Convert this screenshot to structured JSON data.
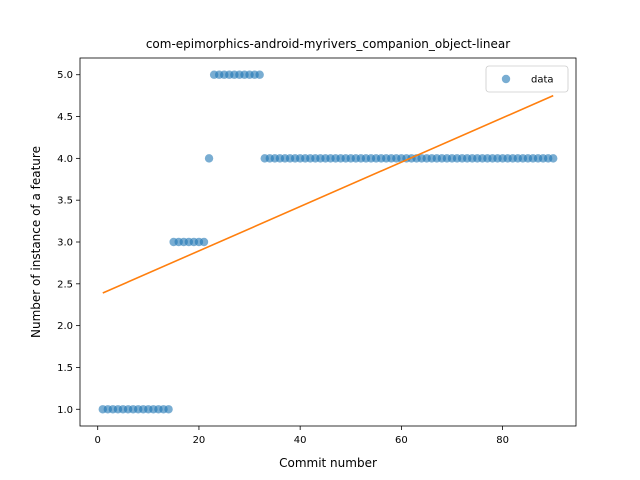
{
  "chart_data": {
    "type": "scatter",
    "title": "com-epimorphics-android-myrivers_companion_object-linear",
    "xlabel": "Commit number",
    "ylabel": "Number of instance of a feature",
    "xlim": [
      -3.5,
      94.5
    ],
    "ylim": [
      0.8,
      5.2
    ],
    "xticks": [
      0,
      20,
      40,
      60,
      80
    ],
    "xtick_labels": [
      "0",
      "20",
      "40",
      "60",
      "80"
    ],
    "yticks": [
      1.0,
      1.5,
      2.0,
      2.5,
      3.0,
      3.5,
      4.0,
      4.5,
      5.0
    ],
    "ytick_labels": [
      "1.0",
      "1.5",
      "2.0",
      "2.5",
      "3.0",
      "3.5",
      "4.0",
      "4.5",
      "5.0"
    ],
    "grid": false,
    "legend": {
      "position": "top-right",
      "entries": [
        "data"
      ]
    },
    "colors": {
      "data": "#1f77b4",
      "fit": "#ff7f0e"
    },
    "series": [
      {
        "name": "data",
        "kind": "scatter",
        "x": [
          1,
          2,
          3,
          4,
          5,
          6,
          7,
          8,
          9,
          10,
          11,
          12,
          13,
          14,
          15,
          16,
          17,
          18,
          19,
          20,
          21,
          22,
          23,
          24,
          25,
          26,
          27,
          28,
          29,
          30,
          31,
          32,
          33,
          34,
          35,
          36,
          37,
          38,
          39,
          40,
          41,
          42,
          43,
          44,
          45,
          46,
          47,
          48,
          49,
          50,
          51,
          52,
          53,
          54,
          55,
          56,
          57,
          58,
          59,
          60,
          61,
          62,
          63,
          64,
          65,
          66,
          67,
          68,
          69,
          70,
          71,
          72,
          73,
          74,
          75,
          76,
          77,
          78,
          79,
          80,
          81,
          82,
          83,
          84,
          85,
          86,
          87,
          88,
          89,
          90
        ],
        "y": [
          1,
          1,
          1,
          1,
          1,
          1,
          1,
          1,
          1,
          1,
          1,
          1,
          1,
          1,
          3,
          3,
          3,
          3,
          3,
          3,
          3,
          4,
          5,
          5,
          5,
          5,
          5,
          5,
          5,
          5,
          5,
          5,
          4,
          4,
          4,
          4,
          4,
          4,
          4,
          4,
          4,
          4,
          4,
          4,
          4,
          4,
          4,
          4,
          4,
          4,
          4,
          4,
          4,
          4,
          4,
          4,
          4,
          4,
          4,
          4,
          4,
          4,
          4,
          4,
          4,
          4,
          4,
          4,
          4,
          4,
          4,
          4,
          4,
          4,
          4,
          4,
          4,
          4,
          4,
          4,
          4,
          4,
          4,
          4,
          4,
          4,
          4,
          4,
          4,
          4
        ]
      },
      {
        "kind": "line",
        "x": [
          1,
          90
        ],
        "y": [
          2.39,
          4.75
        ]
      }
    ]
  }
}
